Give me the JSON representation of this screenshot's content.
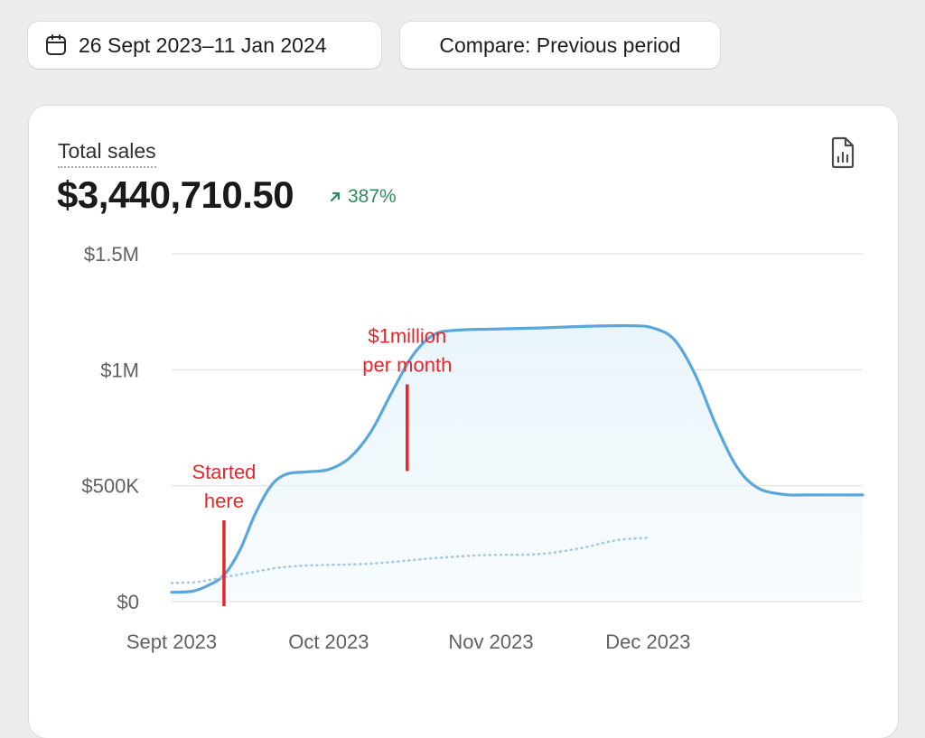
{
  "filters": {
    "date_range": "26 Sept 2023–11 Jan 2024",
    "compare": "Compare: Previous period"
  },
  "metric": {
    "label": "Total sales",
    "value": "$3,440,710.50",
    "change": "387%",
    "change_direction": "up"
  },
  "icons": {
    "date_pill": "calendar-icon",
    "change": "arrow-up-right-icon",
    "export": "report-export-icon"
  },
  "colors": {
    "series": "#5aa7db",
    "area_fill": "#eaf5fb",
    "comparison": "#9fcbe6",
    "positive": "#2f8a5b",
    "annotation": "#e5262b"
  },
  "chart_data": {
    "type": "line",
    "title": "",
    "xlabel": "",
    "ylabel": "",
    "ylim": [
      0,
      1500000
    ],
    "yticks": [
      {
        "value": 0,
        "label": "$0"
      },
      {
        "value": 500000,
        "label": "$500K"
      },
      {
        "value": 1000000,
        "label": "$1M"
      },
      {
        "value": 1500000,
        "label": "$1.5M"
      }
    ],
    "xlim": [
      "2023-09-01",
      "2024-01-11"
    ],
    "xticks": [
      {
        "date": "2023-09-01",
        "label": "Sept 2023"
      },
      {
        "date": "2023-10-01",
        "label": "Oct 2023"
      },
      {
        "date": "2023-11-01",
        "label": "Nov 2023"
      },
      {
        "date": "2023-12-01",
        "label": "Dec 2023"
      }
    ],
    "grid": true,
    "series": [
      {
        "style": "solid-area",
        "points": [
          [
            "2023-09-01",
            40000
          ],
          [
            "2023-09-05",
            45000
          ],
          [
            "2023-09-08",
            70000
          ],
          [
            "2023-09-11",
            115000
          ],
          [
            "2023-09-14",
            220000
          ],
          [
            "2023-09-17",
            380000
          ],
          [
            "2023-09-20",
            500000
          ],
          [
            "2023-09-23",
            550000
          ],
          [
            "2023-09-27",
            560000
          ],
          [
            "2023-10-01",
            570000
          ],
          [
            "2023-10-05",
            620000
          ],
          [
            "2023-10-09",
            730000
          ],
          [
            "2023-10-13",
            900000
          ],
          [
            "2023-10-17",
            1060000
          ],
          [
            "2023-10-21",
            1150000
          ],
          [
            "2023-10-25",
            1170000
          ],
          [
            "2023-11-01",
            1175000
          ],
          [
            "2023-11-10",
            1180000
          ],
          [
            "2023-11-20",
            1188000
          ],
          [
            "2023-11-28",
            1190000
          ],
          [
            "2023-12-02",
            1180000
          ],
          [
            "2023-12-06",
            1130000
          ],
          [
            "2023-12-10",
            980000
          ],
          [
            "2023-12-14",
            760000
          ],
          [
            "2023-12-18",
            580000
          ],
          [
            "2023-12-22",
            490000
          ],
          [
            "2023-12-27",
            462000
          ],
          [
            "2024-01-01",
            460000
          ]
        ]
      },
      {
        "style": "dotted",
        "points": [
          [
            "2023-09-01",
            80000
          ],
          [
            "2023-09-06",
            85000
          ],
          [
            "2023-09-11",
            105000
          ],
          [
            "2023-09-16",
            125000
          ],
          [
            "2023-09-21",
            145000
          ],
          [
            "2023-09-26",
            155000
          ],
          [
            "2023-10-01",
            158000
          ],
          [
            "2023-10-10",
            165000
          ],
          [
            "2023-10-20",
            185000
          ],
          [
            "2023-10-30",
            200000
          ],
          [
            "2023-11-10",
            205000
          ],
          [
            "2023-11-18",
            230000
          ],
          [
            "2023-11-25",
            265000
          ],
          [
            "2023-12-01",
            275000
          ]
        ]
      }
    ],
    "annotations": [
      {
        "date": "2023-09-11",
        "text_lines": [
          "Started",
          "here"
        ]
      },
      {
        "date": "2023-10-16",
        "text_lines": [
          "$1million",
          "per month"
        ]
      }
    ]
  }
}
